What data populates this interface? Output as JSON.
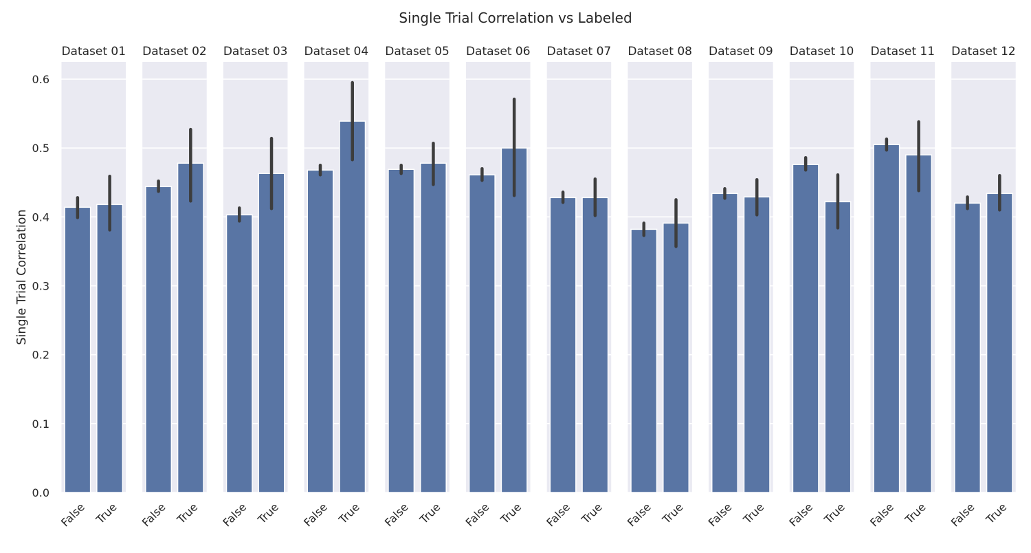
{
  "chart_data": {
    "type": "bar",
    "title": "Single Trial Correlation vs Labeled",
    "ylabel": "Single Trial Correlation",
    "xlabel": "",
    "ylim": [
      0,
      0.625
    ],
    "yticks": [
      "0.0",
      "0.1",
      "0.2",
      "0.3",
      "0.4",
      "0.5",
      "0.6"
    ],
    "grid": true,
    "bar_color": "#5975a4",
    "errorbar_color": "#3d3d3d",
    "panel_background": "#eaeaf2",
    "categories": [
      "False",
      "True"
    ],
    "panels": [
      {
        "title": "Dataset 01",
        "values": [
          0.414,
          0.418
        ],
        "ci": [
          [
            0.399,
            0.428
          ],
          [
            0.381,
            0.459
          ]
        ]
      },
      {
        "title": "Dataset 02",
        "values": [
          0.444,
          0.478
        ],
        "ci": [
          [
            0.437,
            0.452
          ],
          [
            0.423,
            0.527
          ]
        ]
      },
      {
        "title": "Dataset 03",
        "values": [
          0.403,
          0.463
        ],
        "ci": [
          [
            0.394,
            0.413
          ],
          [
            0.412,
            0.514
          ]
        ]
      },
      {
        "title": "Dataset 04",
        "values": [
          0.468,
          0.539
        ],
        "ci": [
          [
            0.461,
            0.475
          ],
          [
            0.483,
            0.595
          ]
        ]
      },
      {
        "title": "Dataset 05",
        "values": [
          0.469,
          0.478
        ],
        "ci": [
          [
            0.463,
            0.475
          ],
          [
            0.447,
            0.507
          ]
        ]
      },
      {
        "title": "Dataset 06",
        "values": [
          0.461,
          0.5
        ],
        "ci": [
          [
            0.453,
            0.47
          ],
          [
            0.431,
            0.571
          ]
        ]
      },
      {
        "title": "Dataset 07",
        "values": [
          0.428,
          0.428
        ],
        "ci": [
          [
            0.421,
            0.436
          ],
          [
            0.402,
            0.455
          ]
        ]
      },
      {
        "title": "Dataset 08",
        "values": [
          0.382,
          0.391
        ],
        "ci": [
          [
            0.373,
            0.391
          ],
          [
            0.357,
            0.425
          ]
        ]
      },
      {
        "title": "Dataset 09",
        "values": [
          0.434,
          0.429
        ],
        "ci": [
          [
            0.427,
            0.441
          ],
          [
            0.403,
            0.454
          ]
        ]
      },
      {
        "title": "Dataset 10",
        "values": [
          0.476,
          0.422
        ],
        "ci": [
          [
            0.468,
            0.486
          ],
          [
            0.384,
            0.461
          ]
        ]
      },
      {
        "title": "Dataset 11",
        "values": [
          0.505,
          0.49
        ],
        "ci": [
          [
            0.497,
            0.513
          ],
          [
            0.438,
            0.538
          ]
        ]
      },
      {
        "title": "Dataset 12",
        "values": [
          0.42,
          0.434
        ],
        "ci": [
          [
            0.412,
            0.429
          ],
          [
            0.41,
            0.46
          ]
        ]
      }
    ]
  }
}
